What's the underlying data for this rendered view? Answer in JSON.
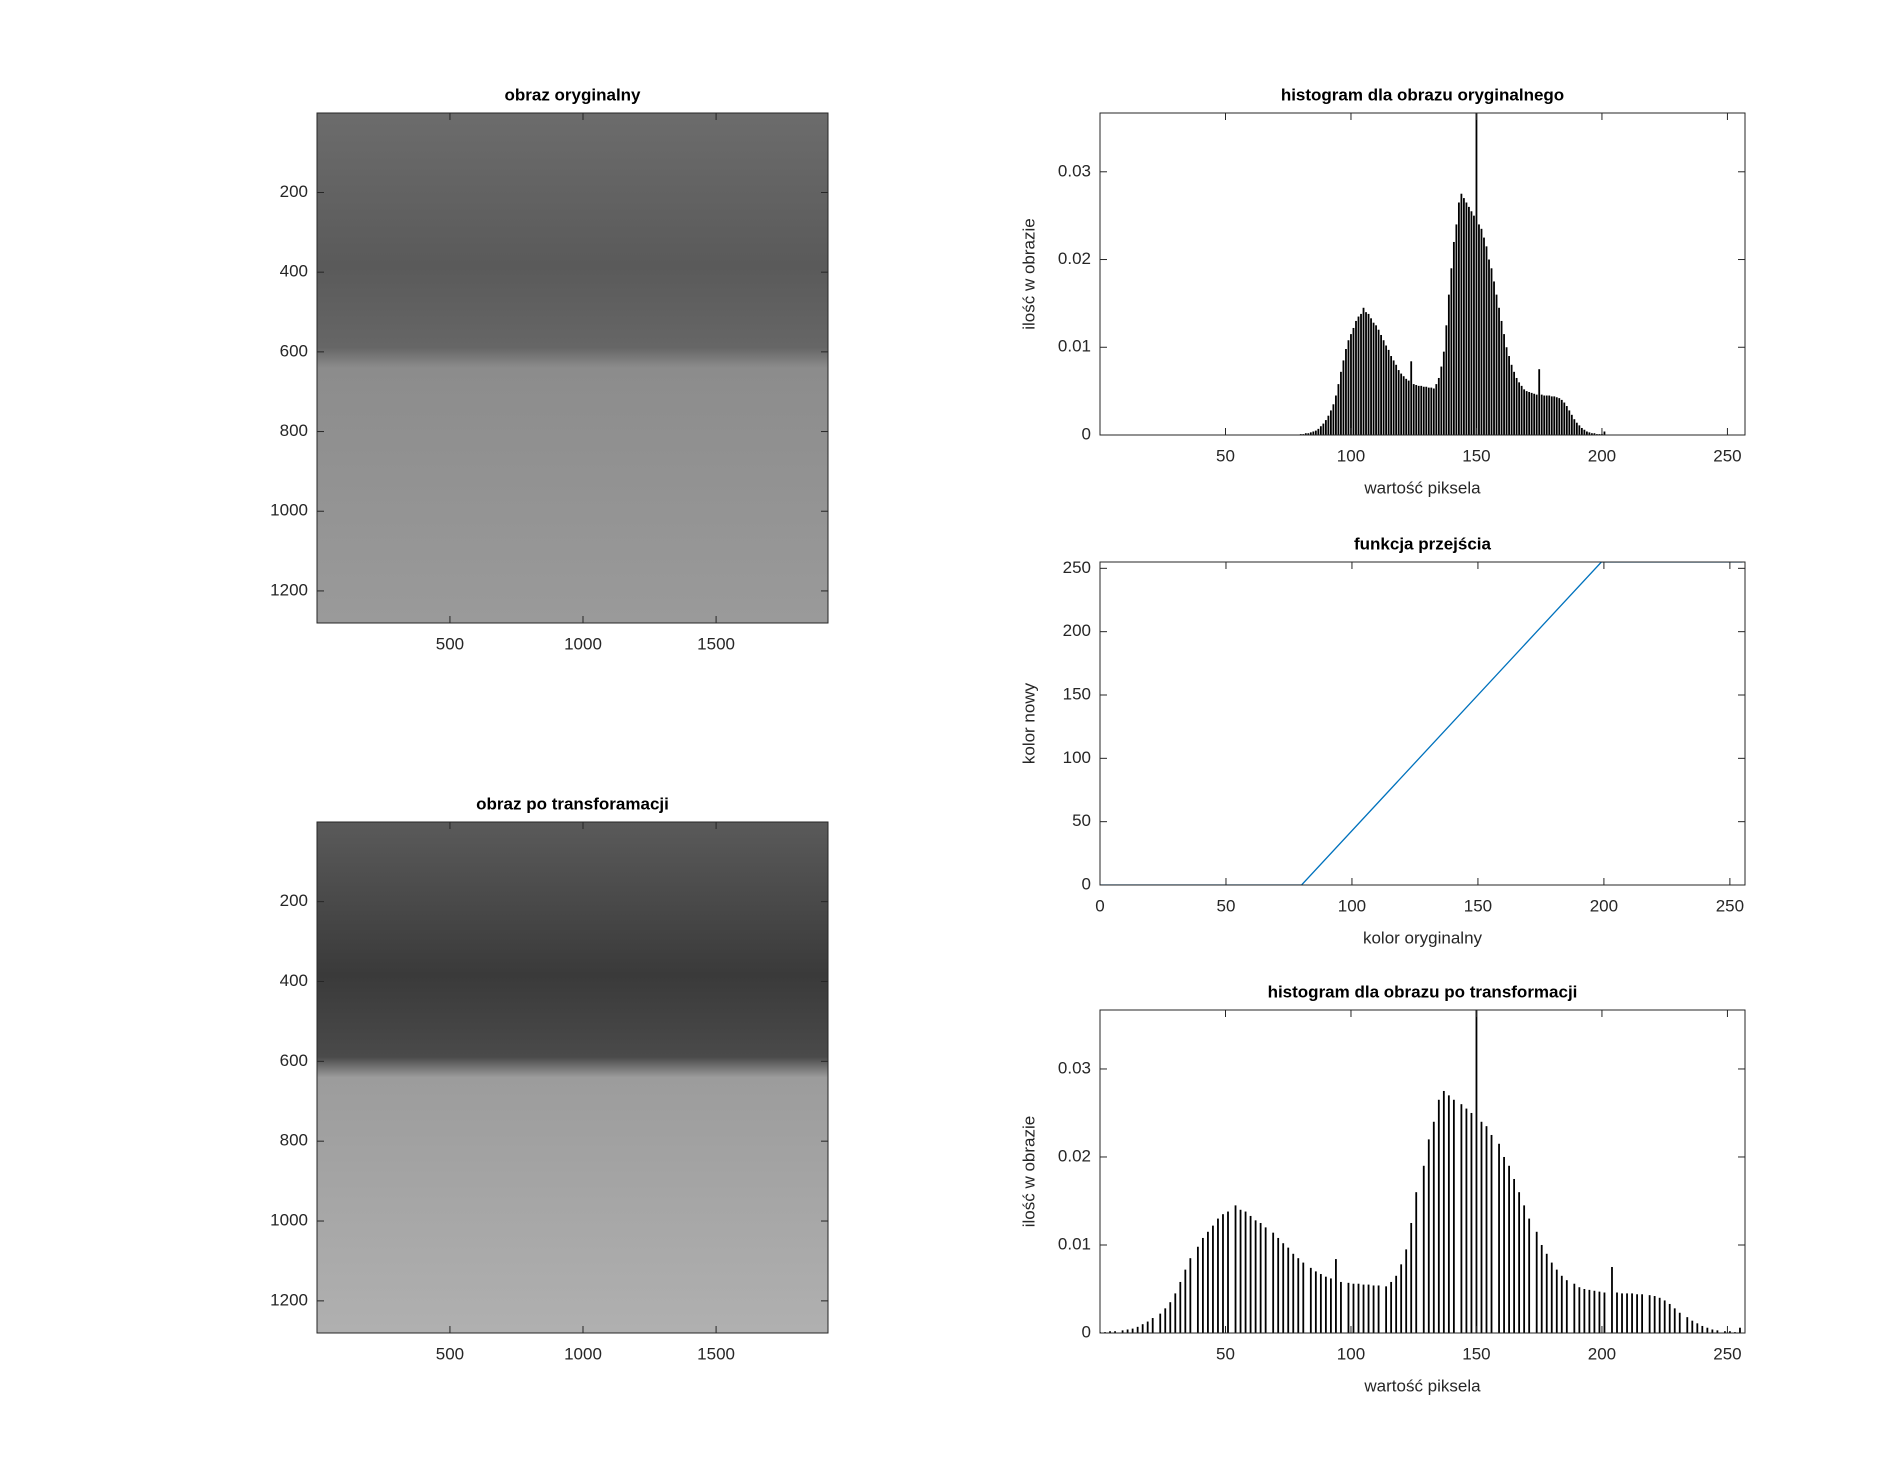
{
  "chart_data": [
    {
      "type": "image",
      "title": "obraz oryginalny",
      "xlim": [
        0.5,
        1920.5
      ],
      "ylim": [
        0.5,
        1280.5
      ],
      "y_direction": "reverse",
      "xticks": [
        500,
        1000,
        1500
      ],
      "yticks": [
        200,
        400,
        600,
        800,
        1000,
        1200
      ]
    },
    {
      "type": "bar",
      "title": "histogram dla obrazu oryginalnego",
      "xlabel": "wartość piksela",
      "ylabel": "ilość w obrazie",
      "color": "#000000",
      "x": [
        80,
        81,
        82,
        83,
        84,
        85,
        86,
        87,
        88,
        89,
        90,
        91,
        92,
        93,
        94,
        95,
        96,
        97,
        98,
        99,
        100,
        101,
        102,
        103,
        104,
        105,
        106,
        107,
        108,
        109,
        110,
        111,
        112,
        113,
        114,
        115,
        116,
        117,
        118,
        119,
        120,
        121,
        122,
        123,
        124,
        125,
        126,
        127,
        128,
        129,
        130,
        131,
        132,
        133,
        134,
        135,
        136,
        137,
        138,
        139,
        140,
        141,
        142,
        143,
        144,
        145,
        146,
        147,
        148,
        149,
        150,
        151,
        152,
        153,
        154,
        155,
        156,
        157,
        158,
        159,
        160,
        161,
        162,
        163,
        164,
        165,
        166,
        167,
        168,
        169,
        170,
        171,
        172,
        173,
        174,
        175,
        176,
        177,
        178,
        179,
        180,
        181,
        182,
        183,
        184,
        185,
        186,
        187,
        188,
        189,
        190,
        191,
        192,
        193,
        194,
        195,
        196,
        197,
        198,
        199,
        200,
        201
      ],
      "values": [
        0.0001,
        0.0001,
        0.0002,
        0.0002,
        0.0003,
        0.0004,
        0.0005,
        0.0007,
        0.001,
        0.0013,
        0.0017,
        0.0022,
        0.0028,
        0.0035,
        0.0045,
        0.0058,
        0.0072,
        0.0085,
        0.0098,
        0.0108,
        0.0115,
        0.0122,
        0.013,
        0.0135,
        0.0138,
        0.0145,
        0.014,
        0.0138,
        0.0133,
        0.0128,
        0.0125,
        0.012,
        0.0114,
        0.0108,
        0.0102,
        0.0097,
        0.009,
        0.0085,
        0.008,
        0.0074,
        0.007,
        0.0067,
        0.0064,
        0.0062,
        0.0084,
        0.0058,
        0.0057,
        0.0056,
        0.0056,
        0.0055,
        0.0055,
        0.0054,
        0.0054,
        0.0053,
        0.0058,
        0.0065,
        0.0078,
        0.0095,
        0.0125,
        0.016,
        0.019,
        0.022,
        0.024,
        0.0265,
        0.0275,
        0.027,
        0.0265,
        0.026,
        0.0255,
        0.025,
        0.04,
        0.024,
        0.0235,
        0.0225,
        0.0215,
        0.02,
        0.019,
        0.0175,
        0.016,
        0.0145,
        0.013,
        0.0115,
        0.01,
        0.009,
        0.008,
        0.0072,
        0.0065,
        0.006,
        0.0056,
        0.0052,
        0.005,
        0.0049,
        0.0048,
        0.0047,
        0.0046,
        0.0075,
        0.0046,
        0.0045,
        0.0045,
        0.0045,
        0.0044,
        0.0044,
        0.0043,
        0.0042,
        0.004,
        0.0037,
        0.0033,
        0.0028,
        0.0023,
        0.0018,
        0.0014,
        0.0011,
        0.0008,
        0.0006,
        0.0004,
        0.0003,
        0.0002,
        0.0002,
        0.0001,
        0.0001,
        0.0001,
        0.0004
      ],
      "xlim": [
        0,
        257
      ],
      "ylim": [
        0,
        0.0367
      ],
      "xticks": [
        50,
        100,
        150,
        200,
        250
      ],
      "yticks": [
        0,
        0.01,
        0.02,
        0.03
      ]
    },
    {
      "type": "line",
      "title": "funkcja przejścia",
      "xlabel": "kolor oryginalny",
      "ylabel": "kolor nowy",
      "color": "#0072bd",
      "x": [
        0,
        80,
        199,
        255
      ],
      "values": [
        0,
        0,
        255,
        255
      ],
      "xlim": [
        0,
        256
      ],
      "ylim": [
        0,
        255
      ],
      "xticks": [
        0,
        50,
        100,
        150,
        200,
        250
      ],
      "yticks": [
        0,
        50,
        100,
        150,
        200,
        250
      ]
    },
    {
      "type": "image",
      "title": "obraz po transforamacji",
      "xlim": [
        0.5,
        1920.5
      ],
      "ylim": [
        0.5,
        1280.5
      ],
      "y_direction": "reverse",
      "xticks": [
        500,
        1000,
        1500
      ],
      "yticks": [
        200,
        400,
        600,
        800,
        1000,
        1200
      ]
    },
    {
      "type": "bar",
      "title": "histogram dla obrazu po transformacji",
      "xlabel": "wartość piksela",
      "ylabel": "ilość w obrazie",
      "color": "#000000",
      "x": [
        0,
        2,
        4,
        6,
        9,
        11,
        13,
        15,
        17,
        19,
        21,
        24,
        26,
        28,
        30,
        32,
        34,
        36,
        39,
        41,
        43,
        45,
        47,
        49,
        51,
        54,
        56,
        58,
        60,
        62,
        64,
        66,
        69,
        71,
        73,
        75,
        77,
        79,
        81,
        84,
        86,
        88,
        90,
        92,
        94,
        96,
        99,
        101,
        103,
        105,
        107,
        109,
        111,
        114,
        116,
        118,
        120,
        122,
        124,
        126,
        129,
        131,
        133,
        135,
        137,
        139,
        141,
        144,
        146,
        148,
        150,
        152,
        154,
        156,
        159,
        161,
        163,
        165,
        167,
        169,
        171,
        174,
        176,
        178,
        180,
        182,
        184,
        186,
        189,
        191,
        193,
        195,
        197,
        199,
        201,
        204,
        206,
        208,
        210,
        212,
        214,
        216,
        219,
        221,
        223,
        225,
        227,
        229,
        231,
        234,
        236,
        238,
        240,
        242,
        244,
        246,
        249,
        251,
        253,
        255
      ],
      "values": [
        0.0001,
        0.0001,
        0.0002,
        0.0002,
        0.0003,
        0.0004,
        0.0005,
        0.0007,
        0.001,
        0.0013,
        0.0017,
        0.0022,
        0.0028,
        0.0035,
        0.0045,
        0.0058,
        0.0072,
        0.0085,
        0.0098,
        0.0108,
        0.0115,
        0.0122,
        0.013,
        0.0135,
        0.0138,
        0.0145,
        0.014,
        0.0138,
        0.0133,
        0.0128,
        0.0125,
        0.012,
        0.0114,
        0.0108,
        0.0102,
        0.0097,
        0.009,
        0.0085,
        0.008,
        0.0074,
        0.007,
        0.0067,
        0.0064,
        0.0062,
        0.0084,
        0.0058,
        0.0057,
        0.0056,
        0.0056,
        0.0055,
        0.0055,
        0.0054,
        0.0054,
        0.0053,
        0.0058,
        0.0065,
        0.0078,
        0.0095,
        0.0125,
        0.016,
        0.019,
        0.022,
        0.024,
        0.0265,
        0.0275,
        0.027,
        0.0265,
        0.026,
        0.0255,
        0.025,
        0.04,
        0.024,
        0.0235,
        0.0225,
        0.0215,
        0.02,
        0.019,
        0.0175,
        0.016,
        0.0145,
        0.013,
        0.0115,
        0.01,
        0.009,
        0.008,
        0.0072,
        0.0065,
        0.006,
        0.0056,
        0.0052,
        0.005,
        0.0049,
        0.0048,
        0.0047,
        0.0046,
        0.0075,
        0.0046,
        0.0045,
        0.0045,
        0.0045,
        0.0044,
        0.0044,
        0.0043,
        0.0042,
        0.004,
        0.0037,
        0.0033,
        0.0028,
        0.0023,
        0.0018,
        0.0014,
        0.0011,
        0.0008,
        0.0006,
        0.0004,
        0.0003,
        0.0002,
        0.0002,
        0.0001,
        0.0006
      ],
      "xlim": [
        0,
        257
      ],
      "ylim": [
        0,
        0.0367
      ],
      "xticks": [
        50,
        100,
        150,
        200,
        250
      ],
      "yticks": [
        0,
        0.01,
        0.02,
        0.03
      ]
    }
  ]
}
